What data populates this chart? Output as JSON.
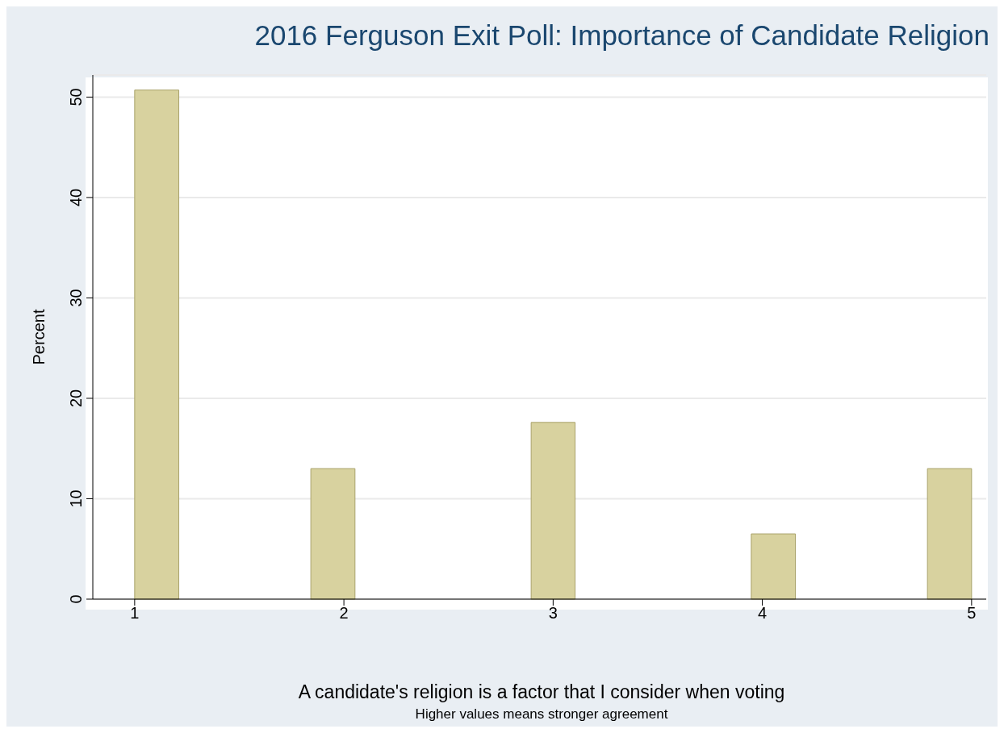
{
  "chart_data": {
    "type": "histogram",
    "title": "2016 Ferguson Exit Poll: Importance of Candidate Religion",
    "xlabel": "A candidate's religion is a factor that I consider when voting",
    "ylabel": "Percent",
    "annotations": [
      "Higher values means stronger agreement"
    ],
    "bins": [
      1,
      1.211,
      1.421,
      1.632,
      1.842,
      2.053,
      2.263,
      2.474,
      2.684,
      2.895,
      3.105,
      3.316,
      3.526,
      3.737,
      3.947,
      4.158,
      4.368,
      4.579,
      4.789,
      5
    ],
    "values": [
      50.7,
      0,
      0,
      0,
      13,
      0,
      0,
      0,
      0,
      17.6,
      0,
      0,
      0,
      0,
      6.5,
      0,
      0,
      0,
      13
    ],
    "color": "#d8d29f",
    "xlim": [
      0.8,
      5.07
    ],
    "xticks": [
      1,
      2,
      3,
      4,
      5
    ],
    "ylim": [
      0,
      52.2
    ],
    "yticks": [
      0,
      10,
      20,
      30,
      40,
      50
    ],
    "grid": "y"
  }
}
